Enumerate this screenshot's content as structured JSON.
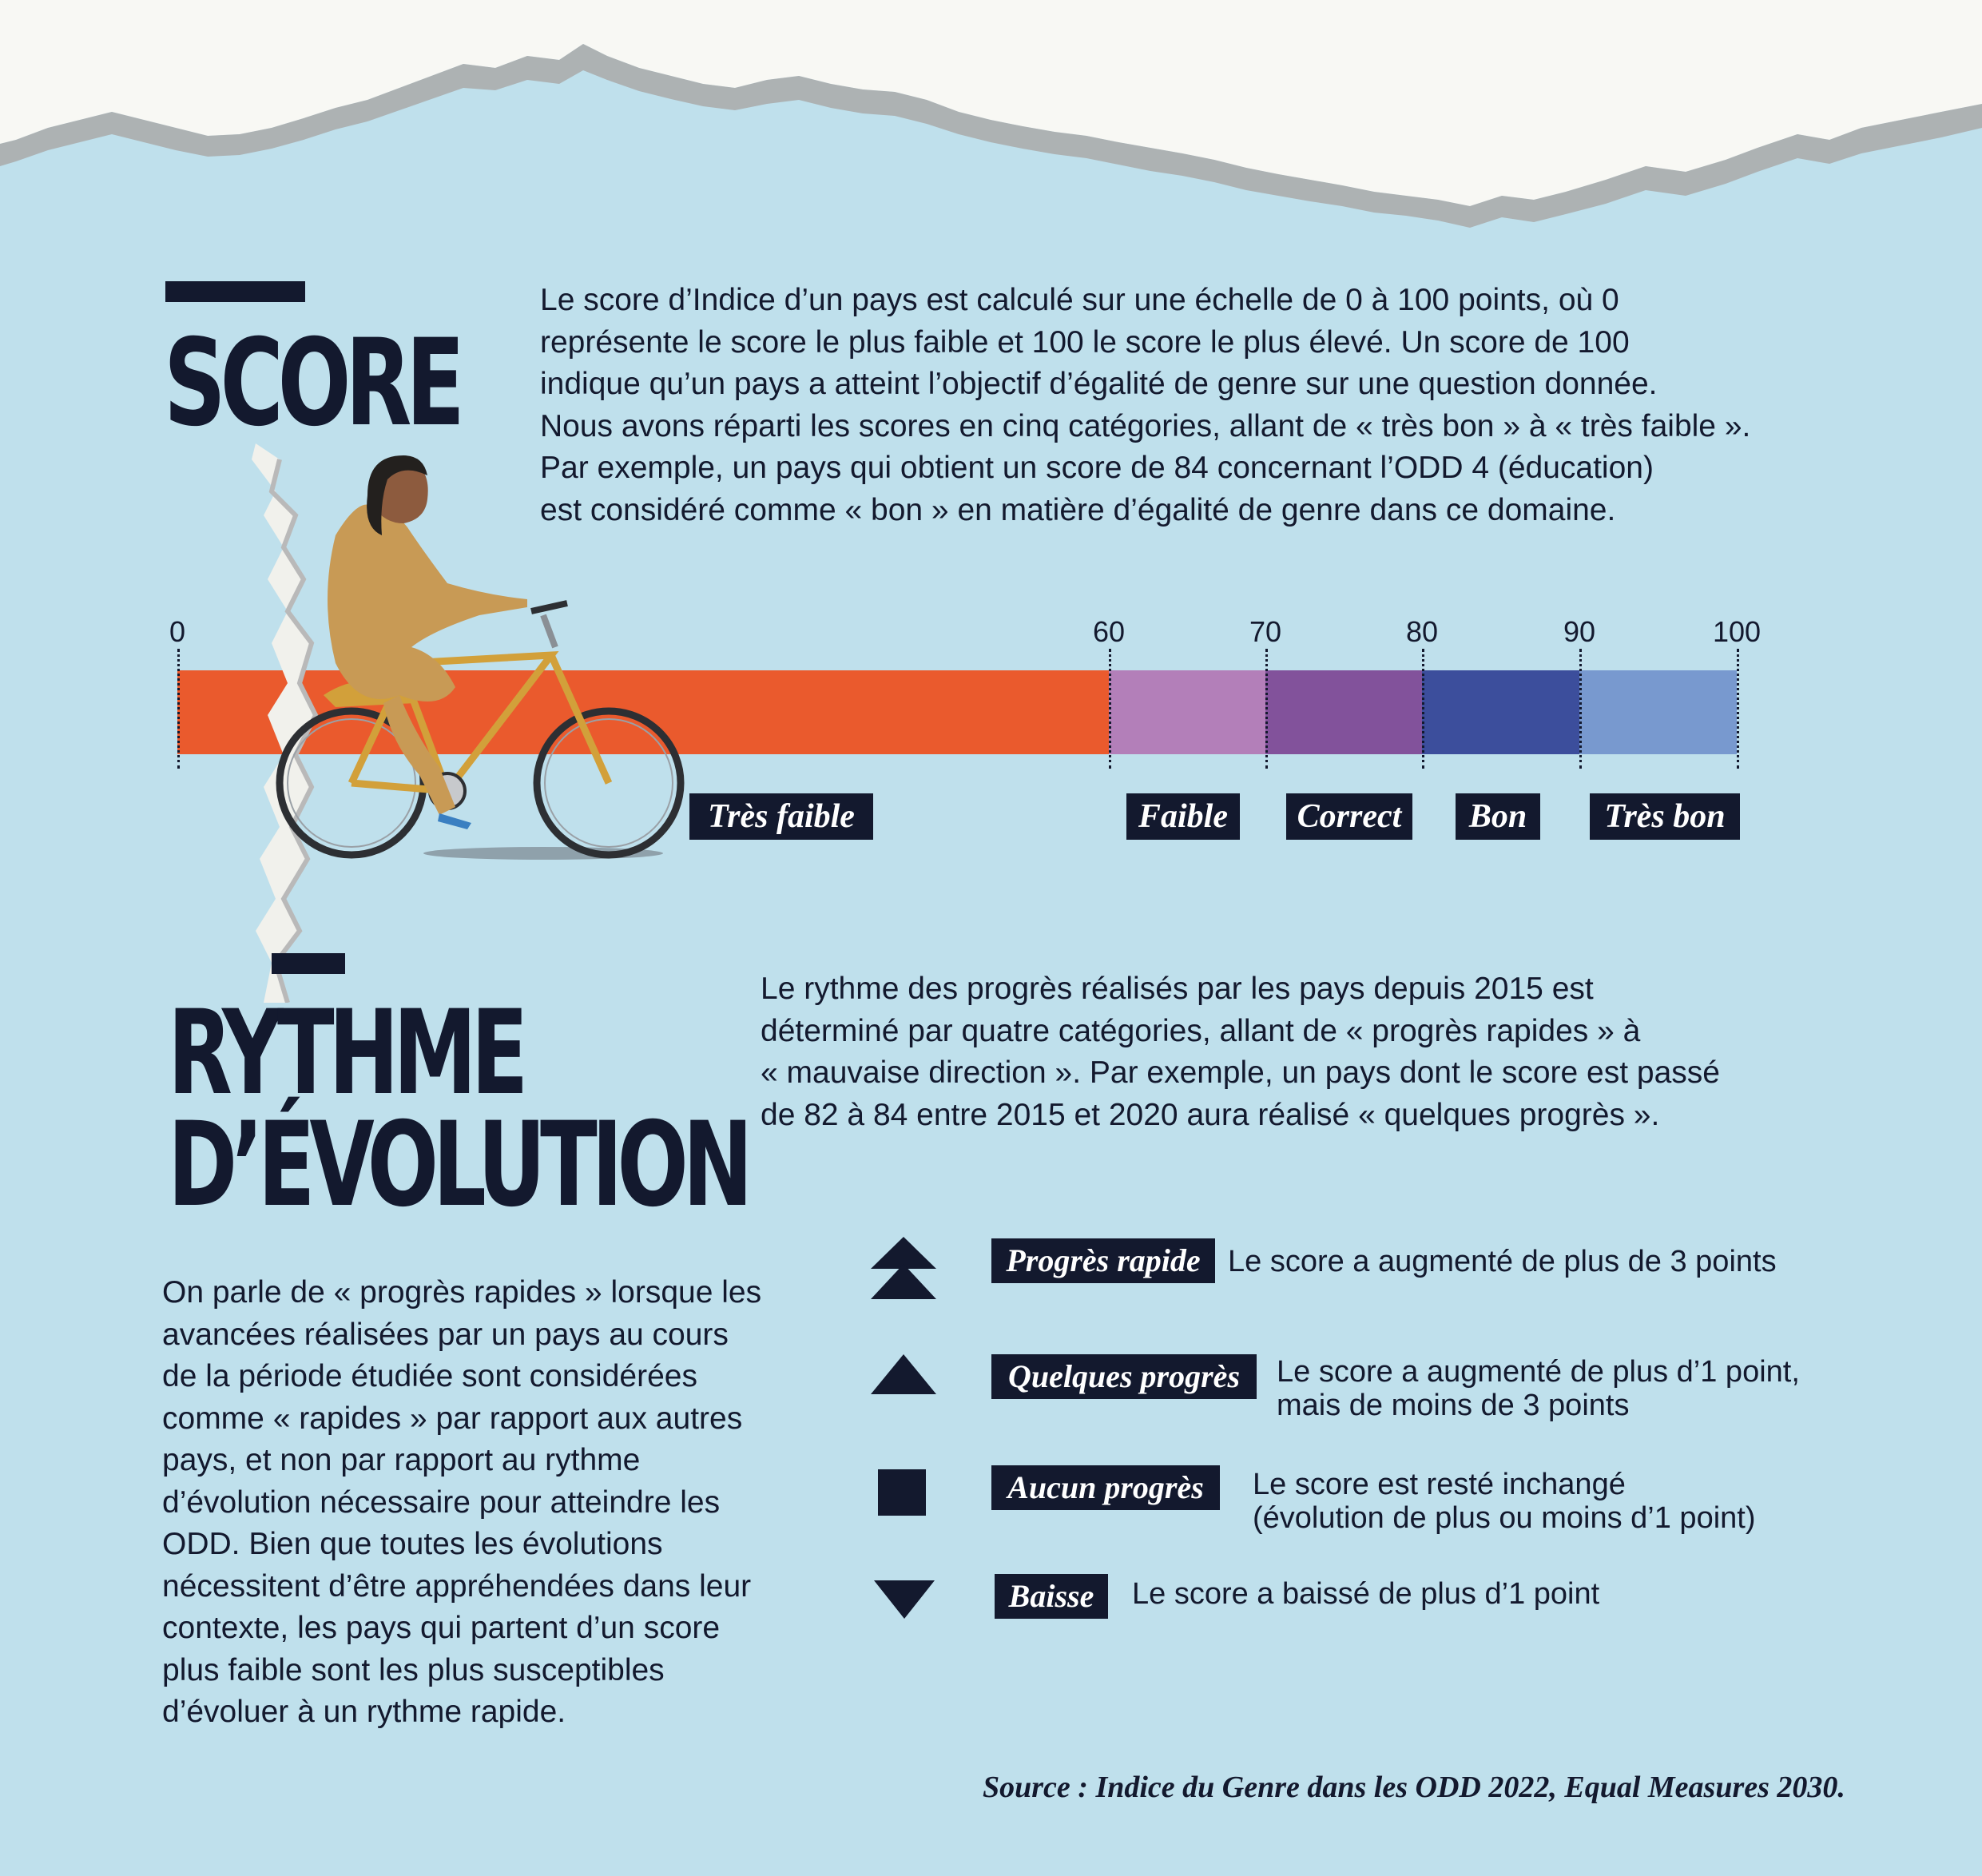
{
  "score_section": {
    "heading": "SCORE",
    "intro_lines": [
      "Le score d’Indice d’un pays est calculé sur une échelle de 0 à 100 points, où 0",
      "représente le score le plus faible et 100 le score le plus élevé. Un score de 100",
      "indique qu’un pays a atteint l’objectif d’égalité de genre sur une question donnée.",
      "Nous avons réparti les scores en cinq catégories, allant de « très bon » à « très faible ».",
      "Par exemple, un pays qui obtient un score de 84 concernant l’ODD 4 (éducation)",
      "est considéré comme « bon » en matière d’égalité de genre dans ce domaine."
    ],
    "scale": {
      "ticks": [
        "0",
        "60",
        "70",
        "80",
        "90",
        "100"
      ],
      "categories": [
        {
          "label": "Très faible",
          "from": 0,
          "to": 60,
          "color": "#ea5a2d"
        },
        {
          "label": "Faible",
          "from": 60,
          "to": 70,
          "color": "#b37fb9"
        },
        {
          "label": "Correct",
          "from": 70,
          "to": 80,
          "color": "#82529b"
        },
        {
          "label": "Bon",
          "from": 80,
          "to": 90,
          "color": "#3c4e9c"
        },
        {
          "label": "Très bon",
          "from": 90,
          "to": 100,
          "color": "#7899cf"
        }
      ]
    }
  },
  "rythme_section": {
    "heading_line1": "RYTHME",
    "heading_line2": "D’ÉVOLUTION",
    "intro_lines": [
      "Le rythme des progrès réalisés par les pays depuis 2015 est",
      "déterminé par quatre catégories, allant de « progrès rapides » à",
      "« mauvaise direction ». Par exemple, un pays dont le score est passé",
      "de 82 à 84 entre 2015 et 2020 aura réalisé « quelques progrès »."
    ],
    "body_lines": [
      "On parle de « progrès rapides » lorsque les",
      "avancées réalisées par un pays au cours",
      "de la période étudiée sont considérées",
      "comme « rapides » par rapport aux autres",
      "pays, et non par rapport au rythme",
      "d’évolution nécessaire pour atteindre les",
      "ODD. Bien que toutes les évolutions",
      "nécessitent d’être appréhendées dans leur",
      "contexte, les pays qui partent d’un score",
      "plus faible sont les plus susceptibles",
      "d’évoluer à un rythme rapide."
    ],
    "legend": [
      {
        "symbol": "double-up-arrow-icon",
        "label": "Progrès rapide",
        "desc_line1": "Le score a augmenté de plus de 3 points",
        "desc_line2": ""
      },
      {
        "symbol": "up-arrow-icon",
        "label": "Quelques progrès",
        "desc_line1": "Le score a augmenté de plus d’1 point,",
        "desc_line2": "mais de moins de 3 points"
      },
      {
        "symbol": "square-icon",
        "label": "Aucun progrès",
        "desc_line1": "Le score est resté inchangé",
        "desc_line2": "(évolution de plus ou moins d’1 point)"
      },
      {
        "symbol": "down-arrow-icon",
        "label": "Baisse",
        "desc_line1": "Le score a baissé de plus d’1 point",
        "desc_line2": ""
      }
    ]
  },
  "source": "Source : Indice du Genre dans les ODD 2022, Equal Measures 2030.",
  "colors": {
    "background": "#bfe0ec",
    "ink": "#13192e"
  }
}
